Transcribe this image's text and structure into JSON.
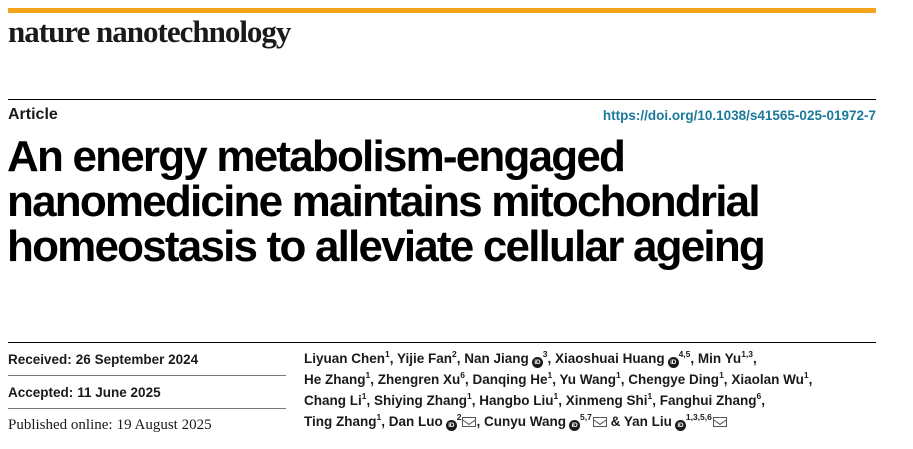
{
  "journal": "nature nanotechnology",
  "article_type": "Article",
  "doi": "https://doi.org/10.1038/s41565-025-01972-7",
  "title_lines": [
    "An energy metabolism-engaged",
    "nanomedicine maintains mitochondrial",
    "homeostasis to alleviate cellular ageing"
  ],
  "dates": {
    "received_label": "Received:",
    "received_value": "26 September 2024",
    "accepted_label": "Accepted:",
    "accepted_value": "11 June 2025",
    "published_label": "Published online:",
    "published_value": "19 August 2025"
  },
  "orcid_glyph": "iD",
  "author_lines": [
    [
      {
        "name": "Liyuan Chen",
        "sup": "1",
        "orcid": false,
        "email": false,
        "sep": ", "
      },
      {
        "name": "Yijie Fan",
        "sup": "2",
        "orcid": false,
        "email": false,
        "sep": ", "
      },
      {
        "name": "Nan Jiang",
        "sup": "3",
        "orcid": true,
        "email": false,
        "sep": ", "
      },
      {
        "name": "Xiaoshuai Huang",
        "sup": "4,5",
        "orcid": true,
        "email": false,
        "sep": ", "
      },
      {
        "name": "Min Yu",
        "sup": "1,3",
        "orcid": false,
        "email": false,
        "sep": ","
      }
    ],
    [
      {
        "name": "He Zhang",
        "sup": "1",
        "orcid": false,
        "email": false,
        "sep": ", "
      },
      {
        "name": "Zhengren Xu",
        "sup": "6",
        "orcid": false,
        "email": false,
        "sep": ", "
      },
      {
        "name": "Danqing He",
        "sup": "1",
        "orcid": false,
        "email": false,
        "sep": ", "
      },
      {
        "name": "Yu Wang",
        "sup": "1",
        "orcid": false,
        "email": false,
        "sep": ", "
      },
      {
        "name": "Chengye Ding",
        "sup": "1",
        "orcid": false,
        "email": false,
        "sep": ", "
      },
      {
        "name": "Xiaolan Wu",
        "sup": "1",
        "orcid": false,
        "email": false,
        "sep": ","
      }
    ],
    [
      {
        "name": "Chang Li",
        "sup": "1",
        "orcid": false,
        "email": false,
        "sep": ", "
      },
      {
        "name": "Shiying Zhang",
        "sup": "1",
        "orcid": false,
        "email": false,
        "sep": ", "
      },
      {
        "name": "Hangbo Liu",
        "sup": "1",
        "orcid": false,
        "email": false,
        "sep": ", "
      },
      {
        "name": "Xinmeng Shi",
        "sup": "1",
        "orcid": false,
        "email": false,
        "sep": ", "
      },
      {
        "name": "Fanghui Zhang",
        "sup": "6",
        "orcid": false,
        "email": false,
        "sep": ","
      }
    ],
    [
      {
        "name": "Ting Zhang",
        "sup": "1",
        "orcid": false,
        "email": false,
        "sep": ", "
      },
      {
        "name": "Dan Luo",
        "sup": "2",
        "orcid": true,
        "email": true,
        "sep": ", "
      },
      {
        "name": "Cunyu Wang",
        "sup": "5,7",
        "orcid": true,
        "email": true,
        "sep": " & "
      },
      {
        "name": "Yan Liu",
        "sup": "1,3,5,6",
        "orcid": true,
        "email": true,
        "sep": ""
      }
    ]
  ]
}
